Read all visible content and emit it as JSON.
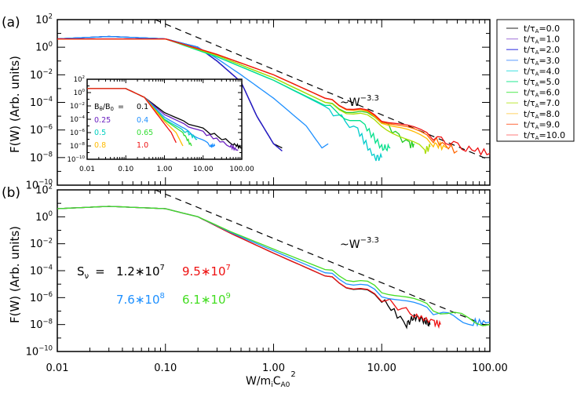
{
  "chart_data": [
    {
      "panel": "(a)",
      "type": "line",
      "xscale": "log",
      "yscale": "log",
      "xlim": [
        0.01,
        100
      ],
      "ylim": [
        1e-10,
        100
      ],
      "xlabel": "",
      "ylabel": "F(W) (Arb. units)",
      "x_tick_labels": [],
      "y_tick_labels": [
        "10^2",
        "10^0",
        "10^-2",
        "10^-4",
        "10^-6",
        "10^-8",
        "10^-10"
      ],
      "annotation": "~W^-3.3",
      "reference_line": {
        "style": "dashed",
        "color": "#000000",
        "slope": -3.3,
        "points": [
          [
            0.08,
            100
          ],
          [
            100,
            6.5e-09
          ]
        ]
      },
      "legend": {
        "position": "outside-right",
        "entries": [
          {
            "label": "t/τA=0.0",
            "color": "#555555"
          },
          {
            "label": "t/τA=1.0",
            "color": "#b48fe0"
          },
          {
            "label": "t/τA=2.0",
            "color": "#5a5ae6"
          },
          {
            "label": "t/τA=3.0",
            "color": "#7fb3ff"
          },
          {
            "label": "t/τA=4.0",
            "color": "#66e6e6"
          },
          {
            "label": "t/τA=5.0",
            "color": "#55eeaa"
          },
          {
            "label": "t/τA=6.0",
            "color": "#77ee77"
          },
          {
            "label": "t/τA=7.0",
            "color": "#ccee66"
          },
          {
            "label": "t/τA=8.0",
            "color": "#ffdd88"
          },
          {
            "label": "t/τA=9.0",
            "color": "#ff8866"
          },
          {
            "label": "t/τA=10.0",
            "color": "#ff9999"
          }
        ]
      },
      "series": [
        {
          "name": "t/τA=0.0",
          "color": "#000000",
          "x": [
            0.01,
            0.03,
            0.1,
            0.2,
            0.3,
            0.5,
            0.7,
            1.0,
            1.2
          ],
          "y": [
            4,
            6,
            4,
            1,
            0.1,
            0.003,
            1e-05,
            1e-07,
            5e-08
          ]
        },
        {
          "name": "t/τA=1.0",
          "color": "#6a00a8",
          "x": [
            0.01,
            0.03,
            0.1,
            0.2,
            0.3,
            0.5,
            0.7,
            1.0,
            1.2
          ],
          "y": [
            4,
            6,
            4,
            1,
            0.1,
            0.003,
            1e-05,
            1e-07,
            3e-08
          ]
        },
        {
          "name": "t/τA=2.0",
          "color": "#2020cc",
          "x": [
            0.01,
            0.03,
            0.1,
            0.2,
            0.3,
            0.5,
            0.7,
            1.0,
            1.2
          ],
          "y": [
            4,
            6,
            4,
            1,
            0.1,
            0.003,
            1e-05,
            1e-07,
            3e-08
          ]
        },
        {
          "name": "t/τA=3.0",
          "color": "#1e90ff",
          "x": [
            0.01,
            0.03,
            0.1,
            0.2,
            0.3,
            0.5,
            1.0,
            2.0,
            2.8,
            3.2
          ],
          "y": [
            4,
            6,
            4,
            1,
            0.15,
            0.01,
            0.0002,
            2e-06,
            5e-08,
            1e-07
          ]
        },
        {
          "name": "t/τA=4.0",
          "color": "#00cccc",
          "x": [
            0.01,
            0.1,
            0.3,
            1.0,
            3.0,
            6.0,
            8.5,
            10
          ],
          "y": [
            4,
            4,
            0.2,
            0.004,
            5e-05,
            1e-06,
            1e-08,
            1e-08
          ]
        },
        {
          "name": "t/τA=5.0",
          "color": "#00e08a",
          "x": [
            0.01,
            0.1,
            0.3,
            1.0,
            3.0,
            7.0,
            10,
            12
          ],
          "y": [
            4,
            4,
            0.2,
            0.004,
            6e-05,
            2e-06,
            5e-08,
            5e-08
          ]
        },
        {
          "name": "t/τA=6.0",
          "color": "#22cc22",
          "x": [
            0.01,
            0.1,
            0.3,
            1.0,
            3.0,
            10,
            18,
            20
          ],
          "y": [
            4,
            4,
            0.25,
            0.006,
            0.0001,
            5e-06,
            8e-08,
            1e-07
          ]
        },
        {
          "name": "t/τA=7.0",
          "color": "#aadd00",
          "x": [
            0.01,
            0.1,
            0.3,
            1.0,
            3.0,
            10,
            25,
            28
          ],
          "y": [
            4,
            4,
            0.25,
            0.006,
            0.0001,
            3e-06,
            3e-08,
            6e-08
          ]
        },
        {
          "name": "t/τA=8.0",
          "color": "#ffbb00",
          "x": [
            0.01,
            0.1,
            0.3,
            1.0,
            3.0,
            10,
            30,
            40
          ],
          "y": [
            4,
            4,
            0.3,
            0.01,
            0.0002,
            5e-06,
            1e-07,
            5e-08
          ]
        },
        {
          "name": "t/τA=9.0",
          "color": "#ff6600",
          "x": [
            0.01,
            0.1,
            0.3,
            1.0,
            3.0,
            10,
            30,
            50
          ],
          "y": [
            4,
            4,
            0.3,
            0.01,
            0.0002,
            6e-06,
            2e-07,
            3e-08
          ]
        },
        {
          "name": "t/τA=10.0",
          "color": "#ee1111",
          "x": [
            0.01,
            0.1,
            0.3,
            1.0,
            3.0,
            10,
            30,
            60,
            100
          ],
          "y": [
            4,
            4,
            0.3,
            0.01,
            0.0002,
            7e-06,
            3e-07,
            5e-08,
            2e-08
          ]
        }
      ],
      "inset": {
        "type": "line",
        "xscale": "log",
        "yscale": "log",
        "xlim": [
          0.01,
          100
        ],
        "ylim": [
          1e-10,
          100
        ],
        "x_tick_labels": [
          "0.01",
          "0.10",
          "1.00",
          "10.00",
          "100.00"
        ],
        "y_tick_labels": [
          "10^2",
          "10^0",
          "10^-2",
          "10^-4",
          "10^-6",
          "10^-8",
          "10^-10"
        ],
        "legend_title": "Bθ/B0 =",
        "series": [
          {
            "name": "0.1",
            "color": "#000000",
            "x": [
              0.01,
              0.1,
              0.3,
              1,
              10,
              60,
              100
            ],
            "y": [
              4,
              4,
              0.2,
              0.001,
              3e-06,
              2e-08,
              5e-09
            ]
          },
          {
            "name": "0.25",
            "color": "#6a1fc0",
            "x": [
              0.01,
              0.1,
              0.3,
              1,
              10,
              50,
              80
            ],
            "y": [
              4,
              4,
              0.2,
              0.0005,
              1e-06,
              1e-08,
              2e-09
            ]
          },
          {
            "name": "0.4",
            "color": "#1e90ff",
            "x": [
              0.01,
              0.1,
              0.3,
              1,
              5,
              15,
              20
            ],
            "y": [
              4,
              4,
              0.2,
              0.0002,
              1e-06,
              1e-08,
              1e-08
            ]
          },
          {
            "name": "0.5",
            "color": "#00d0c0",
            "x": [
              0.01,
              0.1,
              0.3,
              1,
              4,
              7
            ],
            "y": [
              4,
              4,
              0.2,
              0.0001,
              1e-06,
              1e-07
            ]
          },
          {
            "name": "0.65",
            "color": "#33dd33",
            "x": [
              0.01,
              0.1,
              0.3,
              1,
              3,
              5
            ],
            "y": [
              4,
              4,
              0.2,
              8e-05,
              1e-06,
              1e-08
            ]
          },
          {
            "name": "0.8",
            "color": "#ffbb00",
            "x": [
              0.01,
              0.1,
              0.3,
              1,
              2,
              3
            ],
            "y": [
              4,
              4,
              0.2,
              5e-05,
              1e-06,
              1e-08
            ]
          },
          {
            "name": "1.0",
            "color": "#ee1111",
            "x": [
              0.01,
              0.1,
              0.3,
              1,
              1.5,
              2
            ],
            "y": [
              4,
              4,
              0.2,
              2e-05,
              1e-06,
              3e-08
            ]
          }
        ]
      }
    },
    {
      "panel": "(b)",
      "type": "line",
      "xscale": "log",
      "yscale": "log",
      "xlim": [
        0.01,
        100
      ],
      "ylim": [
        1e-10,
        100
      ],
      "xlabel": "W/m_i C_A0^2",
      "ylabel": "F(W) (Arb. units)",
      "x_tick_labels": [
        "0.01",
        "0.10",
        "1.00",
        "10.00",
        "100.00"
      ],
      "y_tick_labels": [
        "10^2",
        "10^0",
        "10^-2",
        "10^-4",
        "10^-6",
        "10^-8",
        "10^-10"
      ],
      "annotation": "~W^-3.3",
      "legend_title": "Sν =",
      "reference_line": {
        "style": "dashed",
        "color": "#000000",
        "slope": -3.3,
        "points": [
          [
            0.08,
            100
          ],
          [
            100,
            6.5e-09
          ]
        ]
      },
      "series": [
        {
          "name": "1.2*10^7",
          "color": "#000000",
          "x": [
            0.01,
            0.03,
            0.1,
            0.2,
            0.4,
            1,
            3,
            10,
            17,
            20,
            25,
            28
          ],
          "y": [
            4,
            6,
            4,
            1,
            0.06,
            0.002,
            4e-05,
            8e-07,
            1e-08,
            4e-08,
            2e-08,
            1e-08
          ]
        },
        {
          "name": "9.5*10^7",
          "color": "#ee1111",
          "x": [
            0.01,
            0.03,
            0.1,
            0.2,
            0.4,
            1,
            3,
            10,
            20,
            30,
            35
          ],
          "y": [
            4,
            6,
            4,
            1,
            0.06,
            0.002,
            4e-05,
            9e-07,
            5e-08,
            1.5e-08,
            1e-08
          ]
        },
        {
          "name": "7.6*10^8",
          "color": "#1e90ff",
          "x": [
            0.01,
            0.03,
            0.1,
            0.2,
            0.4,
            1,
            3,
            10,
            30,
            70,
            100
          ],
          "y": [
            4,
            6,
            4,
            1,
            0.07,
            0.003,
            7e-05,
            2e-06,
            8e-08,
            1.5e-08,
            1.5e-08
          ]
        },
        {
          "name": "6.1*10^9",
          "color": "#44dd22",
          "x": [
            0.01,
            0.03,
            0.1,
            0.2,
            0.4,
            1,
            3,
            10,
            30,
            100
          ],
          "y": [
            4,
            6,
            4,
            1,
            0.08,
            0.004,
            0.00012,
            4e-06,
            1.5e-07,
            1e-08
          ]
        }
      ]
    }
  ],
  "labels": {
    "panel_a": "(a)",
    "panel_b": "(b)",
    "ylabel": "F(W) (Arb. units)",
    "xlabel_main": "W/m",
    "xlabel_sub_i": "i",
    "xlabel_c": "C",
    "xlabel_sub": "A0",
    "xlabel_sup": "2",
    "powerlaw_tilde": "~W",
    "powerlaw_exp": "−3.3",
    "inset_btitle": "B",
    "inset_btitle_sub1": "θ",
    "inset_btitle_mid": "/B",
    "inset_btitle_sub2": "0",
    "inset_btitle_eq": "=",
    "sv_label": "S",
    "sv_sub": "ν",
    "sv_eq": "=",
    "sv_values": [
      {
        "mant": "1.2∗10",
        "exp": "7",
        "color": "#000000"
      },
      {
        "mant": "9.5∗10",
        "exp": "7",
        "color": "#ee1111"
      },
      {
        "mant": "7.6∗10",
        "exp": "8",
        "color": "#1e90ff"
      },
      {
        "mant": "6.1∗10",
        "exp": "9",
        "color": "#44dd22"
      }
    ],
    "inset_vals": [
      {
        "text": "0.1",
        "color": "#000000"
      },
      {
        "text": "0.25",
        "color": "#6a1fc0"
      },
      {
        "text": "0.4",
        "color": "#1e90ff"
      },
      {
        "text": "0.5",
        "color": "#00d0c0"
      },
      {
        "text": "0.65",
        "color": "#33dd33"
      },
      {
        "text": "0.8",
        "color": "#ffbb00"
      },
      {
        "text": "1.0",
        "color": "#ee1111"
      }
    ],
    "ytick_base": "10",
    "ytick_exps": [
      "2",
      "0",
      "−2",
      "−4",
      "−6",
      "−8",
      "−10"
    ],
    "xticks": [
      "0.01",
      "0.10",
      "1.00",
      "10.00",
      "100.00"
    ],
    "legend_prefix": "t/τ",
    "legend_sub": "A",
    "legend_vals": [
      "=0.0",
      "=1.0",
      "=2.0",
      "=3.0",
      "=4.0",
      "=5.0",
      "=6.0",
      "=7.0",
      "=8.0",
      "=9.0",
      "=10.0"
    ]
  }
}
